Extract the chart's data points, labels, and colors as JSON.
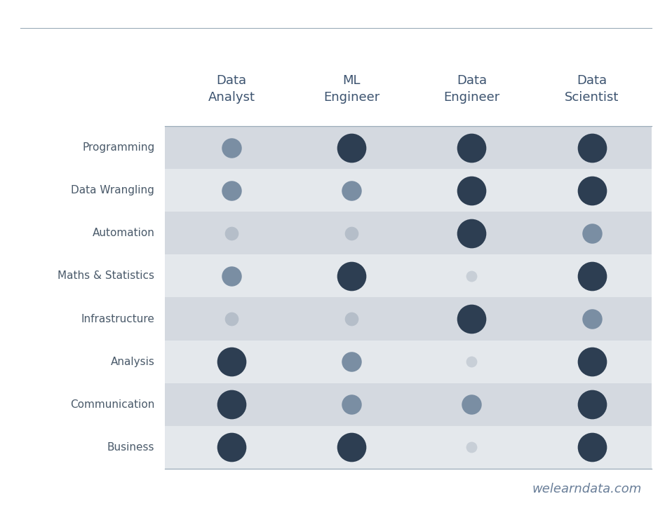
{
  "col_headers": [
    "Data\nAnalyst",
    "ML\nEngineer",
    "Data\nEngineer",
    "Data\nScientist"
  ],
  "row_labels": [
    "Programming",
    "Data Wrangling",
    "Automation",
    "Maths & Statistics",
    "Infrastructure",
    "Analysis",
    "Communication",
    "Business"
  ],
  "bubble_data": [
    [
      {
        "size": 420,
        "color": "#7a8ea3"
      },
      {
        "size": 900,
        "color": "#2d3e52"
      },
      {
        "size": 900,
        "color": "#2d3e52"
      },
      {
        "size": 900,
        "color": "#2d3e52"
      }
    ],
    [
      {
        "size": 420,
        "color": "#7a8ea3"
      },
      {
        "size": 420,
        "color": "#7a8ea3"
      },
      {
        "size": 900,
        "color": "#2d3e52"
      },
      {
        "size": 900,
        "color": "#2d3e52"
      }
    ],
    [
      {
        "size": 200,
        "color": "#b5bec9"
      },
      {
        "size": 200,
        "color": "#b5bec9"
      },
      {
        "size": 900,
        "color": "#2d3e52"
      },
      {
        "size": 420,
        "color": "#7a8ea3"
      }
    ],
    [
      {
        "size": 420,
        "color": "#7a8ea3"
      },
      {
        "size": 900,
        "color": "#2d3e52"
      },
      {
        "size": 130,
        "color": "#c8cfd7"
      },
      {
        "size": 900,
        "color": "#2d3e52"
      }
    ],
    [
      {
        "size": 200,
        "color": "#b5bec9"
      },
      {
        "size": 200,
        "color": "#b5bec9"
      },
      {
        "size": 900,
        "color": "#2d3e52"
      },
      {
        "size": 420,
        "color": "#7a8ea3"
      }
    ],
    [
      {
        "size": 900,
        "color": "#2d3e52"
      },
      {
        "size": 420,
        "color": "#7a8ea3"
      },
      {
        "size": 130,
        "color": "#c8cfd7"
      },
      {
        "size": 900,
        "color": "#2d3e52"
      }
    ],
    [
      {
        "size": 900,
        "color": "#2d3e52"
      },
      {
        "size": 420,
        "color": "#7a8ea3"
      },
      {
        "size": 420,
        "color": "#7a8ea3"
      },
      {
        "size": 900,
        "color": "#2d3e52"
      }
    ],
    [
      {
        "size": 900,
        "color": "#2d3e52"
      },
      {
        "size": 900,
        "color": "#2d3e52"
      },
      {
        "size": 130,
        "color": "#c8cfd7"
      },
      {
        "size": 900,
        "color": "#2d3e52"
      }
    ]
  ],
  "bg_color": "#ffffff",
  "row_bg_shaded": "#d4d9e0",
  "row_bg_white": "#e4e8ec",
  "header_color": "#3d5470",
  "label_color": "#4a5a6a",
  "watermark": "welearndata.com",
  "watermark_color": "#6a7f99",
  "line_color": "#9aaab8"
}
